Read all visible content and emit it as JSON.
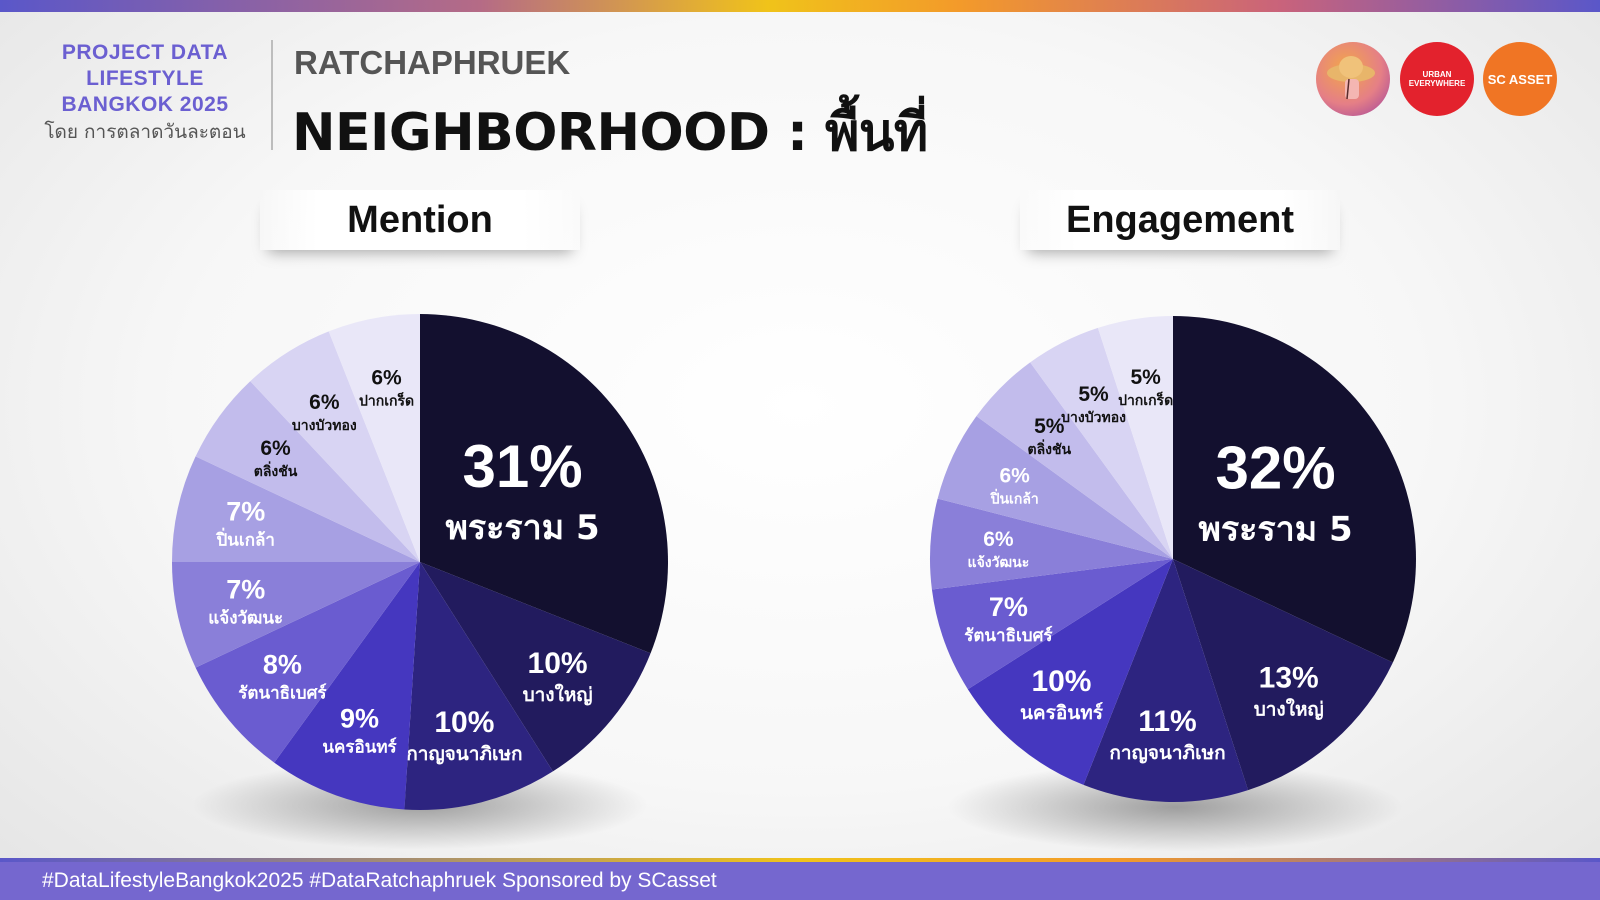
{
  "header": {
    "brand_lines": [
      "PROJECT DATA",
      "LIFESTYLE",
      "BANGKOK 2025"
    ],
    "brand_sub": "โดย การตลาดวันละตอน",
    "area": "RATCHAPHRUEK",
    "title": "NEIGHBORHOOD : พื้นที่"
  },
  "logos": {
    "logo2_text": "URBAN EVERYWHERE",
    "logo3_text": "SC ASSET"
  },
  "footer": {
    "text": "#DataLifestyleBangkok2025 #DataRatchaphruek Sponsored by SCasset"
  },
  "colors": {
    "slices": [
      "#13102f",
      "#221b5e",
      "#2d2480",
      "#4537bf",
      "#6a5cd0",
      "#8a7fd9",
      "#a7a0e3",
      "#c2bcec",
      "#d8d4f3",
      "#e9e7f8"
    ]
  },
  "chart_data": [
    {
      "type": "pie",
      "title": "Mention",
      "categories": [
        "พระราม 5",
        "บางใหญ่",
        "กาญจนาภิเษก",
        "นครอินทร์",
        "รัตนาธิเบศร์",
        "แจ้งวัฒนะ",
        "ปิ่นเกล้า",
        "ตลิ่งชัน",
        "บางบัวทอง",
        "ปากเกร็ด"
      ],
      "values": [
        31,
        10,
        10,
        9,
        8,
        7,
        7,
        6,
        6,
        6
      ],
      "value_labels": [
        "31%",
        "10%",
        "10%",
        "9%",
        "8%",
        "7%",
        "7%",
        "6%",
        "6%",
        "6%"
      ]
    },
    {
      "type": "pie",
      "title": "Engagement",
      "categories": [
        "พระราม 5",
        "บางใหญ่",
        "กาญจนาภิเษก",
        "นครอินทร์",
        "รัตนาธิเบศร์",
        "แจ้งวัฒนะ",
        "ปิ่นเกล้า",
        "ตลิ่งชัน",
        "บางบัวทอง",
        "ปากเกร็ด"
      ],
      "values": [
        32,
        13,
        11,
        10,
        7,
        6,
        6,
        5,
        5,
        5
      ],
      "value_labels": [
        "32%",
        "13%",
        "11%",
        "10%",
        "7%",
        "6%",
        "6%",
        "5%",
        "5%",
        "5%"
      ]
    }
  ]
}
